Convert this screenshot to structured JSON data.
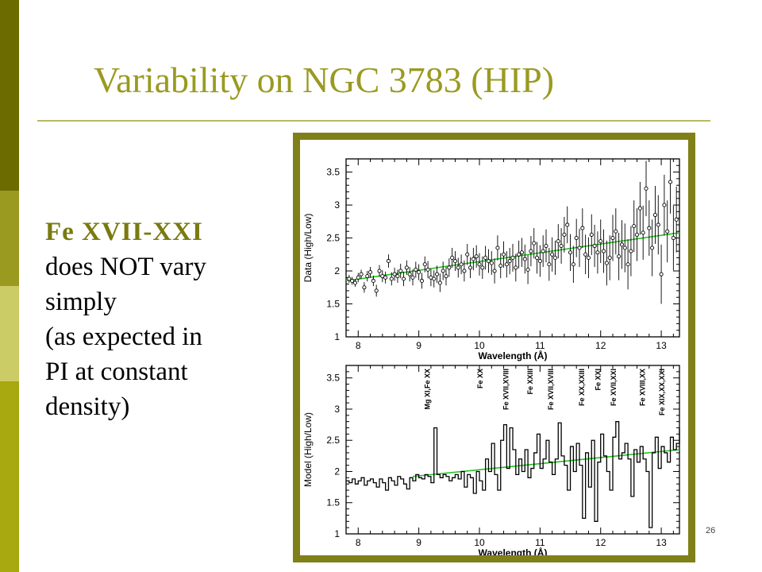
{
  "slide": {
    "title": "Variability on NGC 3783 (HIP)",
    "body_highlight": "Fe XVII-XXI",
    "body_lines": [
      "does NOT vary",
      "simply",
      "(as expected in",
      "PI at constant",
      "density)"
    ],
    "slide_number": "26"
  },
  "colors": {
    "title": "#9a9a22",
    "figure_frame": "#808018",
    "fit_line": "#22c322",
    "sidebar": [
      "#6b6b00",
      "#9a9a20",
      "#cccc66",
      "#a8a810"
    ]
  },
  "chart_data": [
    {
      "type": "scatter",
      "xlabel": "Wavelength (Å)",
      "ylabel": "Data (High/Low)",
      "xlim": [
        7.8,
        13.3
      ],
      "ylim": [
        1,
        3.7
      ],
      "xticks": [
        "8",
        "9",
        "10",
        "11",
        "12",
        "13"
      ],
      "yticks": [
        "1",
        "1.5",
        "2",
        "2.5",
        "3",
        "3.5"
      ],
      "fit_line": {
        "x": [
          7.8,
          13.3
        ],
        "y": [
          1.85,
          2.58
        ]
      },
      "series": [
        {
          "x": [
            7.85,
            7.9,
            7.95,
            8.0,
            8.05,
            8.1,
            8.15,
            8.2,
            8.25,
            8.3,
            8.35,
            8.4,
            8.45,
            8.5,
            8.55,
            8.6,
            8.65,
            8.7,
            8.75,
            8.8,
            8.85,
            8.9,
            8.95,
            9.0,
            9.05,
            9.1,
            9.15,
            9.2,
            9.25,
            9.3,
            9.35,
            9.4,
            9.45,
            9.5,
            9.55,
            9.6,
            9.65,
            9.7,
            9.75,
            9.8,
            9.85,
            9.9,
            9.95,
            10.0,
            10.05,
            10.1,
            10.15,
            10.2,
            10.25,
            10.3,
            10.35,
            10.4,
            10.45,
            10.5,
            10.55,
            10.6,
            10.65,
            10.7,
            10.75,
            10.8,
            10.85,
            10.9,
            10.95,
            11.0,
            11.05,
            11.1,
            11.15,
            11.2,
            11.25,
            11.3,
            11.35,
            11.4,
            11.45,
            11.5,
            11.55,
            11.6,
            11.65,
            11.7,
            11.75,
            11.8,
            11.85,
            11.9,
            11.95,
            12.0,
            12.05,
            12.1,
            12.15,
            12.2,
            12.25,
            12.3,
            12.35,
            12.4,
            12.45,
            12.5,
            12.55,
            12.6,
            12.65,
            12.7,
            12.75,
            12.8,
            12.85,
            12.9,
            12.95,
            13.0,
            13.05,
            13.1,
            13.15,
            13.2,
            13.25
          ],
          "y": [
            1.88,
            1.85,
            1.82,
            1.9,
            1.95,
            1.75,
            1.92,
            1.98,
            1.85,
            1.7,
            2.0,
            1.92,
            1.9,
            2.15,
            1.88,
            1.95,
            1.92,
            2.0,
            1.88,
            2.05,
            1.95,
            1.9,
            2.02,
            1.98,
            1.85,
            2.1,
            2.02,
            1.9,
            1.88,
            1.95,
            1.82,
            2.0,
            1.92,
            2.05,
            2.2,
            2.15,
            2.05,
            2.1,
            2.0,
            2.25,
            2.05,
            2.18,
            2.22,
            2.1,
            2.05,
            2.2,
            2.15,
            2.12,
            2.0,
            2.35,
            2.08,
            2.25,
            2.1,
            2.15,
            2.2,
            2.05,
            2.25,
            2.28,
            2.18,
            2.02,
            2.3,
            2.42,
            2.2,
            2.15,
            2.3,
            2.38,
            2.1,
            2.25,
            2.2,
            2.45,
            2.38,
            2.55,
            2.7,
            2.28,
            2.1,
            2.5,
            2.35,
            2.65,
            2.25,
            2.2,
            2.55,
            2.38,
            2.28,
            2.45,
            2.3,
            2.12,
            2.2,
            2.5,
            2.6,
            2.22,
            2.4,
            2.35,
            2.1,
            2.3,
            2.68,
            2.55,
            2.95,
            2.58,
            3.25,
            2.65,
            2.35,
            2.85,
            2.7,
            1.95,
            3.0,
            2.6,
            3.35,
            2.5,
            2.78
          ],
          "yerr": [
            0.06,
            0.06,
            0.06,
            0.07,
            0.07,
            0.08,
            0.08,
            0.08,
            0.08,
            0.09,
            0.09,
            0.09,
            0.09,
            0.1,
            0.1,
            0.1,
            0.1,
            0.11,
            0.11,
            0.11,
            0.11,
            0.12,
            0.12,
            0.12,
            0.12,
            0.12,
            0.13,
            0.13,
            0.13,
            0.13,
            0.14,
            0.14,
            0.14,
            0.14,
            0.15,
            0.15,
            0.15,
            0.15,
            0.16,
            0.16,
            0.16,
            0.17,
            0.17,
            0.17,
            0.17,
            0.18,
            0.18,
            0.18,
            0.19,
            0.19,
            0.19,
            0.2,
            0.2,
            0.2,
            0.21,
            0.21,
            0.21,
            0.22,
            0.22,
            0.22,
            0.23,
            0.23,
            0.24,
            0.24,
            0.24,
            0.25,
            0.25,
            0.26,
            0.26,
            0.26,
            0.27,
            0.27,
            0.28,
            0.28,
            0.28,
            0.29,
            0.29,
            0.3,
            0.3,
            0.31,
            0.31,
            0.32,
            0.32,
            0.33,
            0.33,
            0.34,
            0.34,
            0.35,
            0.35,
            0.36,
            0.37,
            0.37,
            0.38,
            0.38,
            0.39,
            0.4,
            0.4,
            0.41,
            0.42,
            0.42,
            0.43,
            0.44,
            0.45,
            0.45,
            0.46,
            0.47,
            0.48,
            0.49,
            0.5
          ]
        }
      ]
    },
    {
      "type": "line",
      "style": "step",
      "xlabel": "Wavelength (Å)",
      "ylabel": "Model (High/Low)",
      "xlim": [
        7.8,
        13.3
      ],
      "ylim": [
        1,
        3.7
      ],
      "xticks": [
        "8",
        "9",
        "10",
        "11",
        "12",
        "13"
      ],
      "yticks": [
        "1",
        "1.5",
        "2",
        "2.5",
        "3",
        "3.5"
      ],
      "fit_line": {
        "x": [
          8.9,
          13.3
        ],
        "y": [
          1.92,
          2.35
        ]
      },
      "annotations": [
        {
          "text": "Mg XI,Fe XX",
          "x": 9.18
        },
        {
          "text": "Fe XX",
          "x": 10.05
        },
        {
          "text": "Fe XVII,XVIII",
          "x": 10.48
        },
        {
          "text": "Fe XXIII",
          "x": 10.88
        },
        {
          "text": "Fe XVII,XVIII",
          "x": 11.22
        },
        {
          "text": "Fe XX,XXIII",
          "x": 11.73
        },
        {
          "text": "Fe XXI",
          "x": 12.0
        },
        {
          "text": "Fe XVII,XXI",
          "x": 12.25
        },
        {
          "text": "Fe XVIII,XX",
          "x": 12.73
        },
        {
          "text": "Fe XIX,XX,XXI",
          "x": 13.05
        }
      ],
      "series": [
        {
          "x": [
            7.8,
            7.85,
            7.9,
            7.95,
            8.0,
            8.05,
            8.1,
            8.15,
            8.2,
            8.25,
            8.3,
            8.35,
            8.4,
            8.45,
            8.5,
            8.55,
            8.6,
            8.65,
            8.7,
            8.75,
            8.8,
            8.85,
            8.9,
            8.95,
            9.0,
            9.05,
            9.1,
            9.15,
            9.2,
            9.25,
            9.3,
            9.35,
            9.4,
            9.45,
            9.5,
            9.55,
            9.6,
            9.65,
            9.7,
            9.75,
            9.8,
            9.85,
            9.9,
            9.95,
            10.0,
            10.05,
            10.1,
            10.15,
            10.2,
            10.25,
            10.3,
            10.35,
            10.4,
            10.45,
            10.5,
            10.55,
            10.6,
            10.65,
            10.7,
            10.75,
            10.8,
            10.85,
            10.9,
            10.95,
            11.0,
            11.05,
            11.1,
            11.15,
            11.2,
            11.25,
            11.3,
            11.35,
            11.4,
            11.45,
            11.5,
            11.55,
            11.6,
            11.65,
            11.7,
            11.75,
            11.8,
            11.85,
            11.9,
            11.95,
            12.0,
            12.05,
            12.1,
            12.15,
            12.2,
            12.25,
            12.3,
            12.35,
            12.4,
            12.45,
            12.5,
            12.55,
            12.6,
            12.65,
            12.7,
            12.75,
            12.8,
            12.85,
            12.9,
            12.95,
            13.0,
            13.05,
            13.1,
            13.15,
            13.2,
            13.25,
            13.3
          ],
          "y": [
            1.85,
            1.82,
            1.88,
            1.8,
            1.85,
            1.9,
            1.78,
            1.85,
            1.88,
            1.82,
            1.75,
            1.88,
            1.82,
            1.7,
            1.9,
            1.85,
            1.78,
            1.92,
            1.88,
            1.8,
            1.72,
            1.9,
            1.85,
            1.95,
            1.9,
            1.88,
            1.95,
            1.92,
            1.82,
            2.7,
            1.95,
            1.9,
            1.95,
            1.92,
            1.85,
            1.9,
            1.95,
            1.88,
            2.0,
            1.75,
            1.95,
            1.9,
            1.65,
            2.0,
            1.85,
            1.7,
            2.2,
            2.0,
            2.45,
            1.95,
            1.7,
            2.5,
            2.75,
            2.05,
            2.7,
            2.35,
            1.95,
            2.2,
            2.0,
            2.35,
            1.9,
            2.05,
            2.3,
            2.6,
            2.05,
            2.2,
            2.5,
            2.15,
            1.95,
            2.2,
            2.78,
            2.25,
            2.1,
            1.7,
            2.4,
            2.0,
            2.45,
            2.1,
            1.25,
            2.3,
            1.75,
            2.5,
            1.2,
            2.15,
            2.6,
            2.25,
            2.0,
            1.7,
            2.55,
            2.8,
            2.2,
            2.3,
            2.45,
            2.2,
            1.6,
            2.35,
            2.15,
            2.4,
            2.2,
            2.0,
            1.1,
            2.3,
            2.55,
            2.05,
            2.4,
            2.3,
            2.15,
            2.55,
            2.35,
            2.45,
            2.7
          ]
        }
      ]
    }
  ]
}
